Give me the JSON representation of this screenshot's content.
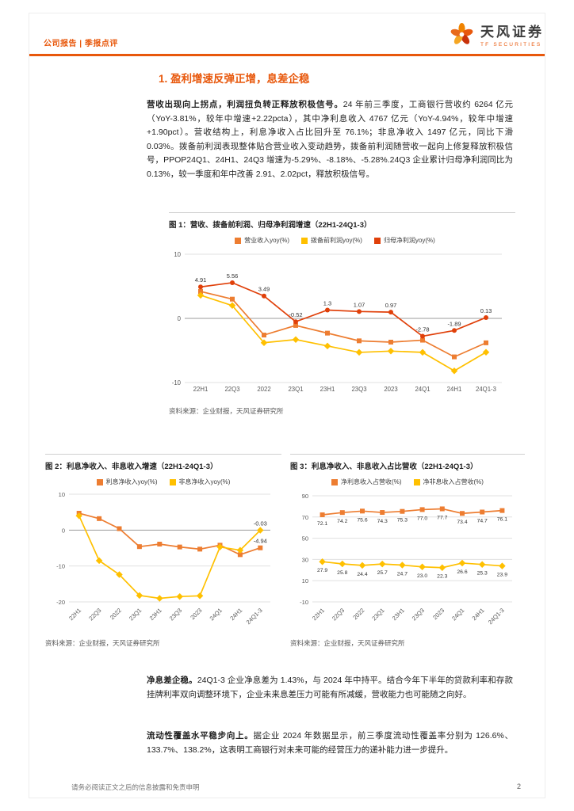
{
  "header": {
    "report_type": "公司报告 | 季报点评",
    "brand": {
      "name": "天风证券",
      "name_en": "TF SECURITIES"
    }
  },
  "section": {
    "title": "1. 盈利增速反弹正增，息差企稳"
  },
  "paragraphs": {
    "p1_bold": "营收出现向上拐点，利润扭负转正释放积极信号。",
    "p1_rest": "24 年前三季度，工商银行营收约 6264 亿元（YoY-3.81%，较年中增速+2.22pcta），其中净利息收入 4767 亿元（YoY-4.94%，较年中增速+1.90pct）。营收结构上，利息净收入占比回升至 76.1%；非息净收入 1497 亿元，同比下滑 0.03%。拨备前利润表现整体贴合营业收入变动趋势，拨备前利润随营收一起向上修复释放积极信号，PPOP24Q1、24H1、24Q3 增速为-5.29%、-8.18%、-5.28%.24Q3 企业累计归母净利润同比为 0.13%，较一季度和年中改善 2.91、2.02pct，释放积极信号。",
    "p2_bold": "净息差企稳。",
    "p2_rest": "24Q1-3 企业净息差为 1.43%，与 2024 年中持平。结合今年下半年的贷款利率和存款挂牌利率双向调整环境下，企业未来息差压力可能有所减缓，营收能力也可能随之向好。",
    "p3_bold": "流动性覆盖水平稳步向上。",
    "p3_rest": "据企业 2024 年数据显示，前三季度流动性覆盖率分别为 126.6%、133.7%、138.2%，这表明工商银行对未来可能的经营压力的递补能力进一步提升。"
  },
  "figures": {
    "fig1": {
      "title": "图 1：营收、拨备前利润、归母净利润增速（22H1-24Q1-3）",
      "source": "资料来源：企业财报，天风证券研究所"
    },
    "fig2": {
      "title": "图 2：利息净收入、非息收入增速（22H1-24Q1-3）",
      "source": "资料来源：企业财报，天风证券研究所"
    },
    "fig3": {
      "title": "图 3：利息净收入、非息收入占比营收（22H1-24Q1-3）",
      "source": "资料来源：企业财报，天风证券研究所"
    }
  },
  "chart_data": [
    {
      "type": "line",
      "title": "营收、拨备前利润、归母净利润增速（22H1-24Q1-3）",
      "categories": [
        "22H1",
        "22Q3",
        "2022",
        "23Q1",
        "23H1",
        "23Q3",
        "2023",
        "24Q1",
        "24H1",
        "24Q1-3"
      ],
      "series": [
        {
          "name": "营业收入yoy(%)",
          "color": "#ED7D31",
          "marker": "square",
          "labels": "none",
          "values": [
            4.2,
            3.0,
            -2.6,
            -1.1,
            -2.3,
            -3.5,
            -3.7,
            -3.4,
            -6.0,
            -3.81
          ]
        },
        {
          "name": "拨备前利润yoy(%)",
          "color": "#FFC000",
          "marker": "diamond",
          "labels": "none",
          "values": [
            3.6,
            2.0,
            -3.8,
            -3.3,
            -4.3,
            -5.3,
            -5.1,
            -5.29,
            -8.18,
            -5.28
          ]
        },
        {
          "name": "归母净利润yoy(%)",
          "color": "#E0400A",
          "marker": "circle",
          "labels": "all",
          "values": [
            4.91,
            5.56,
            3.49,
            -0.52,
            1.3,
            1.07,
            0.97,
            -2.78,
            -1.89,
            0.13
          ]
        }
      ],
      "ylim": [
        -10,
        10
      ],
      "yticks": [
        10,
        0,
        -10
      ],
      "x_label_rotate": false,
      "legend_position": "top",
      "grid": true
    },
    {
      "type": "line",
      "title": "利息净收入、非息收入增速（22H1-24Q1-3）",
      "categories": [
        "22H1",
        "22Q3",
        "2022",
        "23Q1",
        "23H1",
        "23Q3",
        "2023",
        "24Q1",
        "24H1",
        "24Q1-3"
      ],
      "series": [
        {
          "name": "利息净收入yoy(%)",
          "color": "#ED7D31",
          "marker": "square",
          "labels": "last",
          "values": [
            4.7,
            3.2,
            0.4,
            -4.6,
            -3.9,
            -4.7,
            -5.3,
            -4.2,
            -6.84,
            -4.94
          ]
        },
        {
          "name": "非息净收入yoy(%)",
          "color": "#FFC000",
          "marker": "diamond",
          "labels": "last",
          "values": [
            4.0,
            -8.5,
            -12.4,
            -18.2,
            -19.0,
            -18.5,
            -18.3,
            -4.7,
            -5.6,
            -0.03
          ]
        }
      ],
      "ylim": [
        -20,
        10
      ],
      "yticks": [
        10,
        0,
        -10,
        -20
      ],
      "x_label_rotate": true,
      "legend_position": "top",
      "grid": true
    },
    {
      "type": "line",
      "title": "利息净收入、非息收入占比营收（22H1-24Q1-3）",
      "categories": [
        "22H1",
        "22Q3",
        "2022",
        "23Q1",
        "23H1",
        "23Q3",
        "2023",
        "24Q1",
        "24H1",
        "24Q1-3"
      ],
      "series": [
        {
          "name": "净利息收入占营收(%)",
          "color": "#ED7D31",
          "marker": "square",
          "labels": "all",
          "label_pos": "below",
          "label_decimals": 1,
          "values": [
            72.1,
            74.2,
            75.6,
            74.3,
            75.3,
            77.0,
            77.7,
            73.4,
            74.7,
            76.1
          ]
        },
        {
          "name": "净非息收入占营收(%)",
          "color": "#FFC000",
          "marker": "diamond",
          "labels": "all",
          "label_pos": "below",
          "label_decimals": 1,
          "values": [
            27.9,
            25.8,
            24.4,
            25.7,
            24.7,
            23.0,
            22.3,
            26.6,
            25.3,
            23.9
          ]
        }
      ],
      "ylim": [
        -10,
        90
      ],
      "yticks": [
        90,
        70,
        50,
        30,
        10,
        -10
      ],
      "x_label_rotate": true,
      "legend_position": "top",
      "grid": true
    }
  ],
  "footer": {
    "disclaimer": "请务必阅读正文之后的信息披露和免责申明",
    "page_number": "2"
  },
  "colors": {
    "accent": "#E8580C",
    "series_orange": "#ED7D31",
    "series_yellow": "#FFC000",
    "series_red": "#E0400A"
  }
}
